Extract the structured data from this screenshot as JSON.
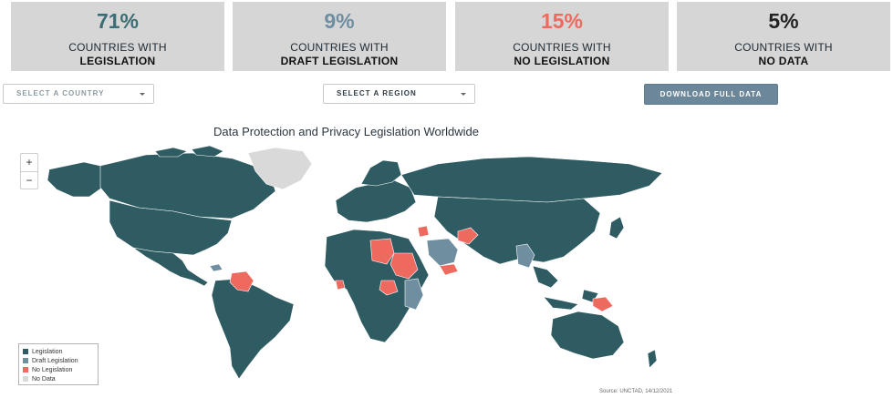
{
  "stats": [
    {
      "pct": "71%",
      "line1": "COUNTRIES WITH",
      "line2": "LEGISLATION",
      "color": "#3b6d74"
    },
    {
      "pct": "9%",
      "line1": "COUNTRIES WITH",
      "line2": "DRAFT LEGISLATION",
      "color": "#6f8fa1"
    },
    {
      "pct": "15%",
      "line1": "COUNTRIES WITH",
      "line2": "NO LEGISLATION",
      "color": "#ee6a5f"
    },
    {
      "pct": "5%",
      "line1": "COUNTRIES WITH",
      "line2": "NO DATA",
      "color": "#222222"
    }
  ],
  "controls": {
    "country_select": "SELECT A COUNTRY",
    "region_select": "SELECT A REGION",
    "download_label": "DOWNLOAD FULL DATA"
  },
  "map": {
    "title": "Data Protection and Privacy Legislation Worldwide",
    "zoom_in": "+",
    "zoom_out": "−",
    "source": "Source: UNCTAD, 14/12/2021",
    "colors": {
      "legislation": "#2f5c63",
      "draft": "#6f8fa1",
      "none": "#ee6a5f",
      "nodata": "#d9d9d9"
    },
    "legend": [
      {
        "label": "Legislation",
        "color": "#2f5c63"
      },
      {
        "label": "Draft Legislation",
        "color": "#6f8fa1"
      },
      {
        "label": "No Legislation",
        "color": "#ee6a5f"
      },
      {
        "label": "No Data",
        "color": "#d9d9d9"
      }
    ]
  }
}
